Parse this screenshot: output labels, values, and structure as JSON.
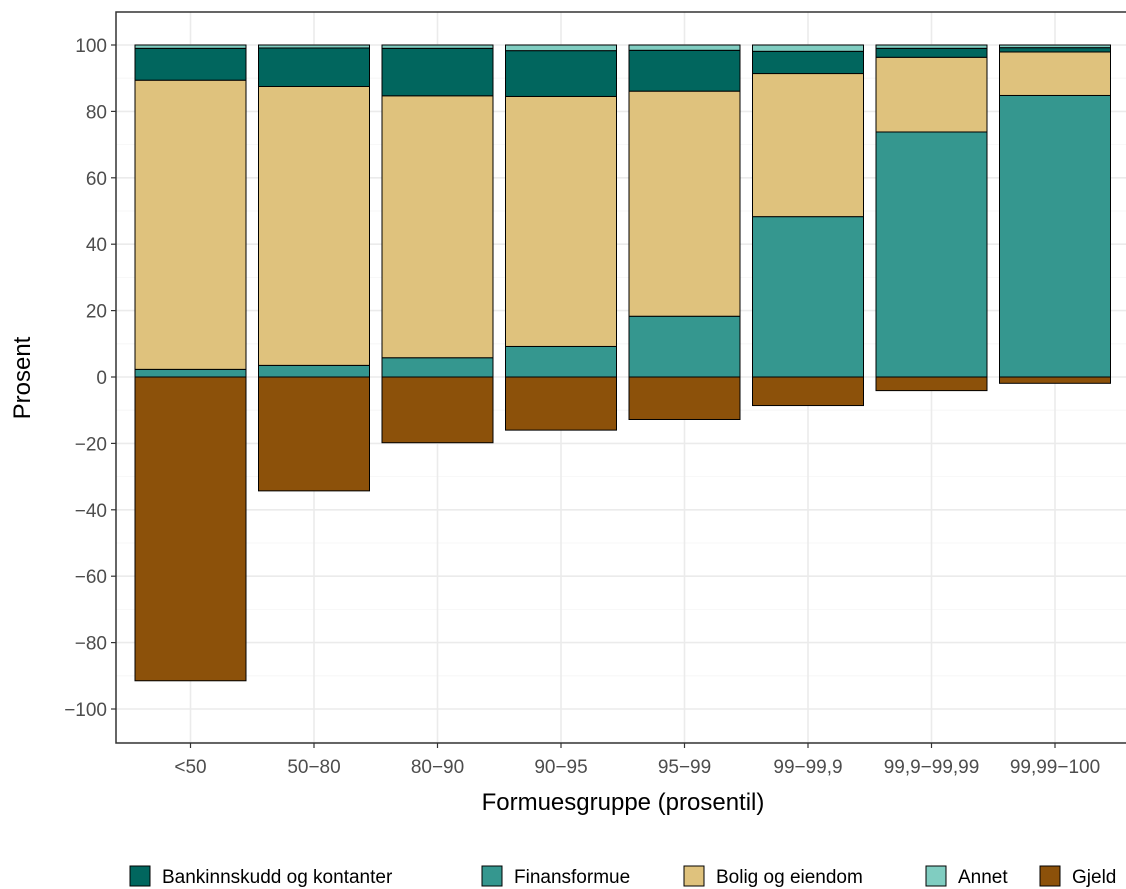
{
  "chart_data": {
    "type": "bar",
    "stacked": "diverging",
    "xlabel": "Formuesgruppe (prosentil)",
    "ylabel": "Prosent",
    "ylim": [
      -110,
      110
    ],
    "yticks": [
      100,
      80,
      60,
      40,
      20,
      0,
      -20,
      -40,
      -60,
      -80,
      -100
    ],
    "ytick_labels": [
      "100",
      "80",
      "60",
      "40",
      "20",
      "0",
      "−20",
      "−40",
      "−60",
      "−80",
      "−100"
    ],
    "grid": true,
    "legend_position": "bottom",
    "categories": [
      "<50",
      "50−80",
      "80−90",
      "90−95",
      "95−99",
      "99−99,9",
      "99,9−99,99",
      "99,99−100"
    ],
    "series": [
      {
        "name": "Gjeld",
        "color": "#8c510a",
        "values": [
          -91.5,
          -34.3,
          -19.8,
          -16.0,
          -12.8,
          -8.6,
          -4.1,
          -1.9
        ]
      },
      {
        "name": "Finansformue",
        "color": "#35978f",
        "values": [
          2.3,
          3.5,
          5.8,
          9.2,
          18.3,
          48.3,
          73.8,
          84.8
        ]
      },
      {
        "name": "Bolig og eiendom",
        "color": "#dfc27d",
        "values": [
          87.1,
          84.0,
          78.9,
          75.3,
          67.8,
          43.1,
          22.5,
          13.1
        ]
      },
      {
        "name": "Bankinnskudd og kontanter",
        "color": "#01665e",
        "values": [
          9.6,
          11.6,
          14.3,
          13.8,
          12.3,
          6.7,
          2.7,
          1.3
        ]
      },
      {
        "name": "Annet",
        "color": "#80cdc1",
        "values": [
          1.0,
          0.9,
          1.0,
          1.7,
          1.6,
          1.9,
          1.0,
          0.8
        ]
      }
    ],
    "legend": [
      "Bankinnskudd og kontanter",
      "Finansformue",
      "Bolig og eiendom",
      "Annet",
      "Gjeld"
    ]
  }
}
